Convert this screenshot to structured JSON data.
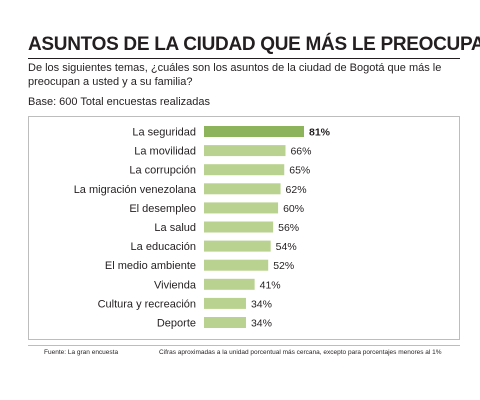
{
  "title": "ASUNTOS DE LA CIUDAD QUE MÁS LE PREOCUPAN",
  "subtitle": "De los siguientes temas, ¿cuáles son los asuntos de la ciudad de Bogotá que más le preocupan a usted y a su familia?",
  "base": "Base: 600 Total encuestas realizadas",
  "footer": {
    "source": "Fuente: La gran encuesta",
    "note": "Cifras aproximadas a la unidad porcentual más cercana, excepto para porcentajes menores al 1%"
  },
  "colors": {
    "bar": "#b9d28f",
    "bar_highlight": "#8db45a",
    "text": "#231f20"
  },
  "chart_data": {
    "type": "bar",
    "orientation": "horizontal",
    "title": "ASUNTOS DE LA CIUDAD QUE MÁS LE PREOCUPAN",
    "xlabel": "",
    "ylabel": "",
    "xlim": [
      0,
      100
    ],
    "grid": false,
    "categories": [
      "La seguridad",
      "La movilidad",
      "La corrupción",
      "La migración venezolana",
      "El desempleo",
      "La salud",
      "La educación",
      "El medio ambiente",
      "Vivienda",
      "Cultura y recreación",
      "Deporte"
    ],
    "values": [
      81,
      66,
      65,
      62,
      60,
      56,
      54,
      52,
      41,
      34,
      34
    ],
    "value_labels": [
      "81%",
      "66%",
      "65%",
      "62%",
      "60%",
      "56%",
      "54%",
      "52%",
      "41%",
      "34%",
      "34%"
    ],
    "highlight_index": 0
  }
}
